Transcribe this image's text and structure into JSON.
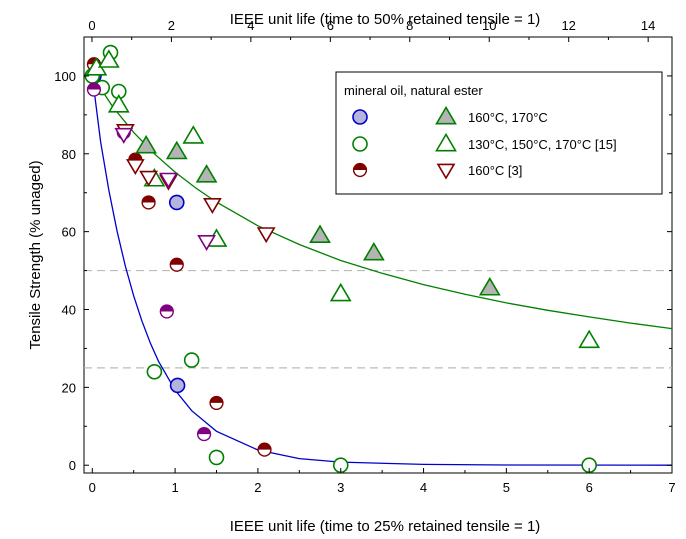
{
  "chart_data": {
    "type": "scatter",
    "title": "",
    "xlabel": "IEEE unit life (time to 25% retained tensile = 1)",
    "x2label": "IEEE unit life (time to 50% retained tensile = 1)",
    "ylabel": "Tensile Strength (% unaged)",
    "xlim": [
      -0.1,
      7
    ],
    "x2lim": [
      -0.2,
      14.6
    ],
    "ylim": [
      -2,
      110
    ],
    "xticks": [
      "0",
      "1",
      "2",
      "3",
      "4",
      "5",
      "6",
      "7"
    ],
    "x2ticks": [
      "0",
      "2",
      "4",
      "6",
      "8",
      "10",
      "12",
      "14"
    ],
    "yticks": [
      "0",
      "20",
      "40",
      "60",
      "80",
      "100"
    ],
    "reference_lines": [
      50,
      25
    ],
    "legend": {
      "position": "top-right",
      "header": "mineral oil, natural ester",
      "rows": [
        {
          "label": "160°C, 170°C",
          "mineral": "filled-circle",
          "ester": "filled-triangle"
        },
        {
          "label": "130°C, 150°C, 170°C [15]",
          "mineral": "open-circle",
          "ester": "open-triangle"
        },
        {
          "label": "160°C [3]",
          "mineral": "half-circle",
          "ester": "open-triangle-down"
        }
      ]
    },
    "curves": [
      {
        "name": "mineral oil fit",
        "color": "#0000cc",
        "points": [
          [
            0,
            100
          ],
          [
            0.1,
            83.1
          ],
          [
            0.2,
            70.7
          ],
          [
            0.3,
            60.1
          ],
          [
            0.4,
            51.1
          ],
          [
            0.5,
            43.5
          ],
          [
            0.6,
            37.0
          ],
          [
            0.7,
            31.4
          ],
          [
            0.8,
            26.7
          ],
          [
            1.0,
            19.3
          ],
          [
            1.2,
            14.0
          ],
          [
            1.5,
            8.7
          ],
          [
            2.0,
            3.9
          ],
          [
            2.5,
            1.7
          ],
          [
            3.0,
            0.8
          ],
          [
            4.0,
            0.2
          ],
          [
            5.0,
            0.05
          ],
          [
            7.0,
            0.0
          ]
        ]
      },
      {
        "name": "natural ester fit",
        "color": "#008000",
        "points": [
          [
            0,
            100
          ],
          [
            0.25,
            92.0
          ],
          [
            0.5,
            85.5
          ],
          [
            0.75,
            80.0
          ],
          [
            1.0,
            75.3
          ],
          [
            1.25,
            71.2
          ],
          [
            1.5,
            67.6
          ],
          [
            2.0,
            61.5
          ],
          [
            2.5,
            56.7
          ],
          [
            3.0,
            52.6
          ],
          [
            3.5,
            49.3
          ],
          [
            4.0,
            46.4
          ],
          [
            4.5,
            43.9
          ],
          [
            5.0,
            41.7
          ],
          [
            5.5,
            39.8
          ],
          [
            6.0,
            38.1
          ],
          [
            6.5,
            36.5
          ],
          [
            7.0,
            35.1
          ]
        ]
      }
    ],
    "series": [
      {
        "name": "mineral oil 160°C, 170°C",
        "marker": "filled-circle",
        "color": "#0000cc",
        "fill": "#b4b4dc",
        "points": [
          [
            0.02,
            100
          ],
          [
            1.02,
            67.5
          ],
          [
            1.03,
            20.5
          ]
        ]
      },
      {
        "name": "mineral oil 130°C, 150°C, 170°C [15]",
        "marker": "open-circle",
        "color": "#008000",
        "points": [
          [
            0.0,
            100
          ],
          [
            0.22,
            106
          ],
          [
            0.12,
            97
          ],
          [
            0.32,
            96
          ],
          [
            0.75,
            24
          ],
          [
            1.2,
            27
          ],
          [
            1.5,
            2
          ],
          [
            3.0,
            0
          ],
          [
            6.0,
            0
          ]
        ]
      },
      {
        "name": "mineral oil 160°C [3]",
        "marker": "half-circle",
        "color": "#800000",
        "points": [
          [
            0.02,
            103
          ],
          [
            0.52,
            78.5
          ],
          [
            0.68,
            67.5
          ],
          [
            1.02,
            51.5
          ],
          [
            1.5,
            16
          ],
          [
            2.08,
            4
          ]
        ]
      },
      {
        "name": "mineral oil 160°C [3] (purple)",
        "marker": "half-circle",
        "color": "#800080",
        "points": [
          [
            0.02,
            96.5
          ],
          [
            0.38,
            85.5
          ],
          [
            0.9,
            39.5
          ],
          [
            1.35,
            8
          ]
        ]
      },
      {
        "name": "natural ester 160°C, 170°C",
        "marker": "filled-triangle",
        "color": "#008000",
        "fill": "#b4b4b4",
        "points": [
          [
            0.65,
            82
          ],
          [
            1.02,
            80.5
          ],
          [
            1.38,
            74.5
          ],
          [
            2.75,
            59
          ],
          [
            3.4,
            54.5
          ],
          [
            4.8,
            45.5
          ]
        ]
      },
      {
        "name": "natural ester 130°C, 150°C, 170°C [15]",
        "marker": "open-triangle",
        "color": "#008000",
        "points": [
          [
            0.05,
            102
          ],
          [
            0.2,
            104
          ],
          [
            0.32,
            92.5
          ],
          [
            0.75,
            73.5
          ],
          [
            1.22,
            84.5
          ],
          [
            1.5,
            58
          ],
          [
            3.0,
            44
          ],
          [
            6.0,
            32
          ]
        ]
      },
      {
        "name": "natural ester 160°C [3]",
        "marker": "open-triangle-down",
        "color": "#800000",
        "points": [
          [
            0.4,
            86
          ],
          [
            0.52,
            77
          ],
          [
            0.68,
            74
          ],
          [
            0.92,
            73
          ],
          [
            1.45,
            67
          ],
          [
            2.1,
            59.5
          ]
        ]
      },
      {
        "name": "natural ester 160°C [3] (purple)",
        "marker": "open-triangle-down",
        "color": "#800080",
        "points": [
          [
            0.38,
            85
          ],
          [
            0.92,
            73.5
          ],
          [
            1.38,
            57.5
          ]
        ]
      }
    ]
  }
}
